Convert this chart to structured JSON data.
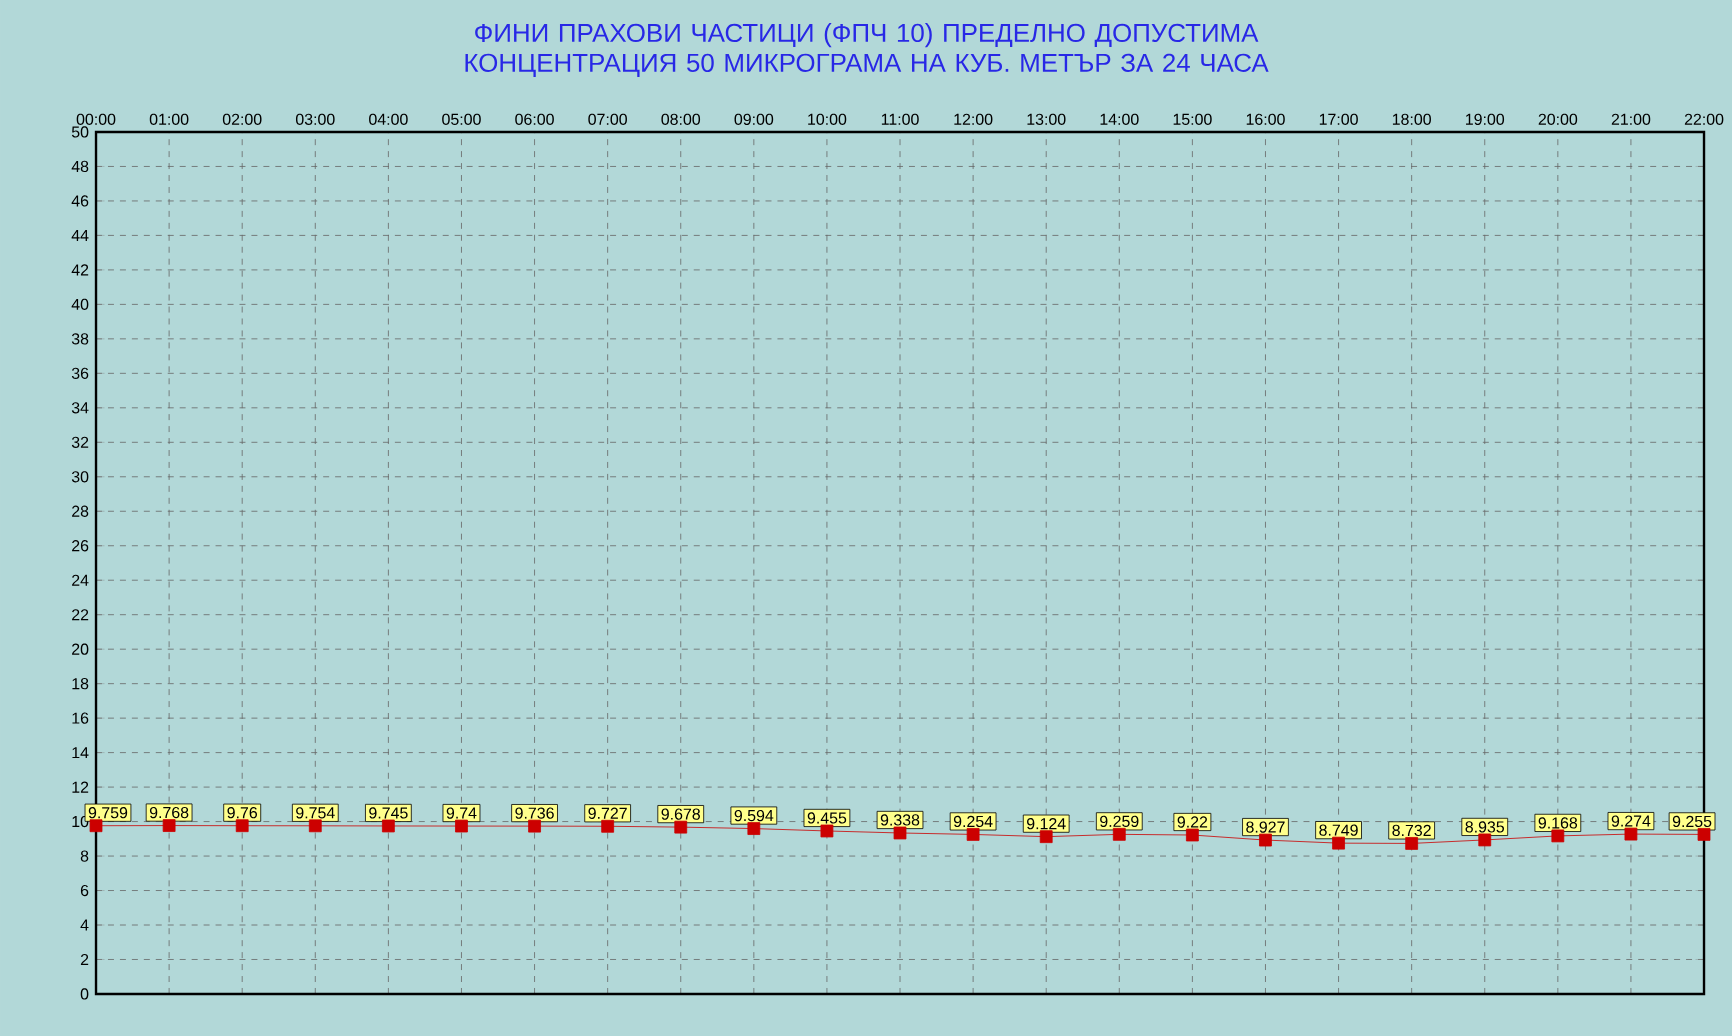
{
  "chart_data": {
    "type": "line",
    "title": "ФИНИ  ПРАХОВИ ЧАСТИЦИ  (ФПЧ 10)  ПРЕДЕЛНО ДОПУСТИМА КОНЦЕНТРАЦИЯ 50 МИКРОГРАМА НА КУБ. МЕТЪР   ЗА 24 ЧАСА",
    "categories": [
      "00:00",
      "01:00",
      "02:00",
      "03:00",
      "04:00",
      "05:00",
      "06:00",
      "07:00",
      "08:00",
      "09:00",
      "10:00",
      "11:00",
      "12:00",
      "13:00",
      "14:00",
      "15:00",
      "16:00",
      "17:00",
      "18:00",
      "19:00",
      "20:00",
      "21:00",
      "22:00"
    ],
    "series": [
      {
        "color": "#cc0000",
        "values": [
          9.759,
          9.768,
          9.76,
          9.754,
          9.745,
          9.74,
          9.736,
          9.727,
          9.678,
          9.594,
          9.455,
          9.338,
          9.254,
          9.124,
          9.259,
          9.22,
          8.927,
          8.749,
          8.732,
          8.935,
          9.168,
          9.274,
          9.255
        ]
      }
    ],
    "ylim": [
      0,
      50
    ],
    "yticks": [
      0,
      2,
      4,
      6,
      8,
      10,
      12,
      14,
      16,
      18,
      20,
      22,
      24,
      26,
      28,
      30,
      32,
      34,
      36,
      38,
      40,
      42,
      44,
      46,
      48,
      50
    ],
    "grid": true,
    "marker": "square",
    "data_labels": true
  }
}
